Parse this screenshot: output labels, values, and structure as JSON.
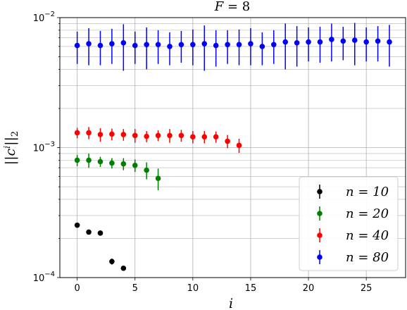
{
  "chart_data": {
    "type": "scatter",
    "title": "F = 8",
    "xlabel": "i",
    "ylabel": "||c^i||_2",
    "xlim": [
      -1.5,
      28.4
    ],
    "ylim": [
      0.0001,
      0.01
    ],
    "yscale": "log",
    "grid": true,
    "legend_position": "bottom-right",
    "x_ticks": [
      0,
      5,
      10,
      15,
      20,
      25
    ],
    "y_ticks": [
      {
        "value": 0.0001,
        "base": "10",
        "exp": "−4"
      },
      {
        "value": 0.001,
        "base": "10",
        "exp": "−3"
      },
      {
        "value": 0.01,
        "base": "10",
        "exp": "−2"
      }
    ],
    "series": [
      {
        "name": "n = 10",
        "color": "#000000",
        "points": [
          {
            "x": 0,
            "y": 0.000253,
            "err": 4e-06
          },
          {
            "x": 1,
            "y": 0.000224,
            "err": 4e-06
          },
          {
            "x": 2,
            "y": 0.00022,
            "err": 4e-06
          },
          {
            "x": 3,
            "y": 0.000133,
            "err": 7e-06
          },
          {
            "x": 4,
            "y": 0.000118,
            "err": 4e-06
          }
        ]
      },
      {
        "name": "n = 20",
        "color": "#008000",
        "points": [
          {
            "x": 0,
            "y": 0.0008,
            "err": 8e-05
          },
          {
            "x": 1,
            "y": 0.0008,
            "err": 0.0001
          },
          {
            "x": 2,
            "y": 0.00078,
            "err": 7e-05
          },
          {
            "x": 3,
            "y": 0.00076,
            "err": 7e-05
          },
          {
            "x": 4,
            "y": 0.00075,
            "err": 8e-05
          },
          {
            "x": 5,
            "y": 0.00073,
            "err": 8e-05
          },
          {
            "x": 6,
            "y": 0.00067,
            "err": 0.0001
          },
          {
            "x": 7,
            "y": 0.00058,
            "err": 0.00011
          }
        ]
      },
      {
        "name": "n = 40",
        "color": "#ff0000",
        "points": [
          {
            "x": 0,
            "y": 0.0013,
            "err": 0.00012
          },
          {
            "x": 1,
            "y": 0.0013,
            "err": 0.00014
          },
          {
            "x": 2,
            "y": 0.00126,
            "err": 0.00015
          },
          {
            "x": 3,
            "y": 0.00127,
            "err": 0.00013
          },
          {
            "x": 4,
            "y": 0.00126,
            "err": 0.00013
          },
          {
            "x": 5,
            "y": 0.00124,
            "err": 0.00015
          },
          {
            "x": 6,
            "y": 0.00122,
            "err": 0.00012
          },
          {
            "x": 7,
            "y": 0.00124,
            "err": 0.00012
          },
          {
            "x": 8,
            "y": 0.00124,
            "err": 0.00015
          },
          {
            "x": 9,
            "y": 0.00124,
            "err": 0.00013
          },
          {
            "x": 10,
            "y": 0.00121,
            "err": 0.00013
          },
          {
            "x": 11,
            "y": 0.00121,
            "err": 0.00013
          },
          {
            "x": 12,
            "y": 0.00121,
            "err": 0.00012
          },
          {
            "x": 13,
            "y": 0.00112,
            "err": 0.00013
          },
          {
            "x": 14,
            "y": 0.00104,
            "err": 0.00013
          }
        ]
      },
      {
        "name": "n = 80",
        "color": "#0000ff",
        "points": [
          {
            "x": 0,
            "y": 0.0061,
            "err": 0.0017
          },
          {
            "x": 1,
            "y": 0.0063,
            "err": 0.002
          },
          {
            "x": 2,
            "y": 0.0061,
            "err": 0.0018
          },
          {
            "x": 3,
            "y": 0.0063,
            "err": 0.0019
          },
          {
            "x": 4,
            "y": 0.0064,
            "err": 0.0025
          },
          {
            "x": 5,
            "y": 0.0061,
            "err": 0.0017
          },
          {
            "x": 6,
            "y": 0.0062,
            "err": 0.0022
          },
          {
            "x": 7,
            "y": 0.0062,
            "err": 0.0018
          },
          {
            "x": 8,
            "y": 0.006,
            "err": 0.0017
          },
          {
            "x": 9,
            "y": 0.0062,
            "err": 0.0017
          },
          {
            "x": 10,
            "y": 0.0062,
            "err": 0.0019
          },
          {
            "x": 11,
            "y": 0.0063,
            "err": 0.0024
          },
          {
            "x": 12,
            "y": 0.0061,
            "err": 0.0019
          },
          {
            "x": 13,
            "y": 0.0062,
            "err": 0.0018
          },
          {
            "x": 14,
            "y": 0.0062,
            "err": 0.0019
          },
          {
            "x": 15,
            "y": 0.0063,
            "err": 0.002
          },
          {
            "x": 16,
            "y": 0.006,
            "err": 0.0017
          },
          {
            "x": 17,
            "y": 0.0062,
            "err": 0.0018
          },
          {
            "x": 18,
            "y": 0.0065,
            "err": 0.0025
          },
          {
            "x": 19,
            "y": 0.0064,
            "err": 0.0022
          },
          {
            "x": 20,
            "y": 0.0065,
            "err": 0.0019
          },
          {
            "x": 21,
            "y": 0.0065,
            "err": 0.002
          },
          {
            "x": 22,
            "y": 0.0068,
            "err": 0.0022
          },
          {
            "x": 23,
            "y": 0.0066,
            "err": 0.0019
          },
          {
            "x": 24,
            "y": 0.0067,
            "err": 0.0024
          },
          {
            "x": 25,
            "y": 0.0065,
            "err": 0.0019
          },
          {
            "x": 26,
            "y": 0.0066,
            "err": 0.002
          },
          {
            "x": 27,
            "y": 0.0065,
            "err": 0.0023
          }
        ]
      }
    ]
  }
}
